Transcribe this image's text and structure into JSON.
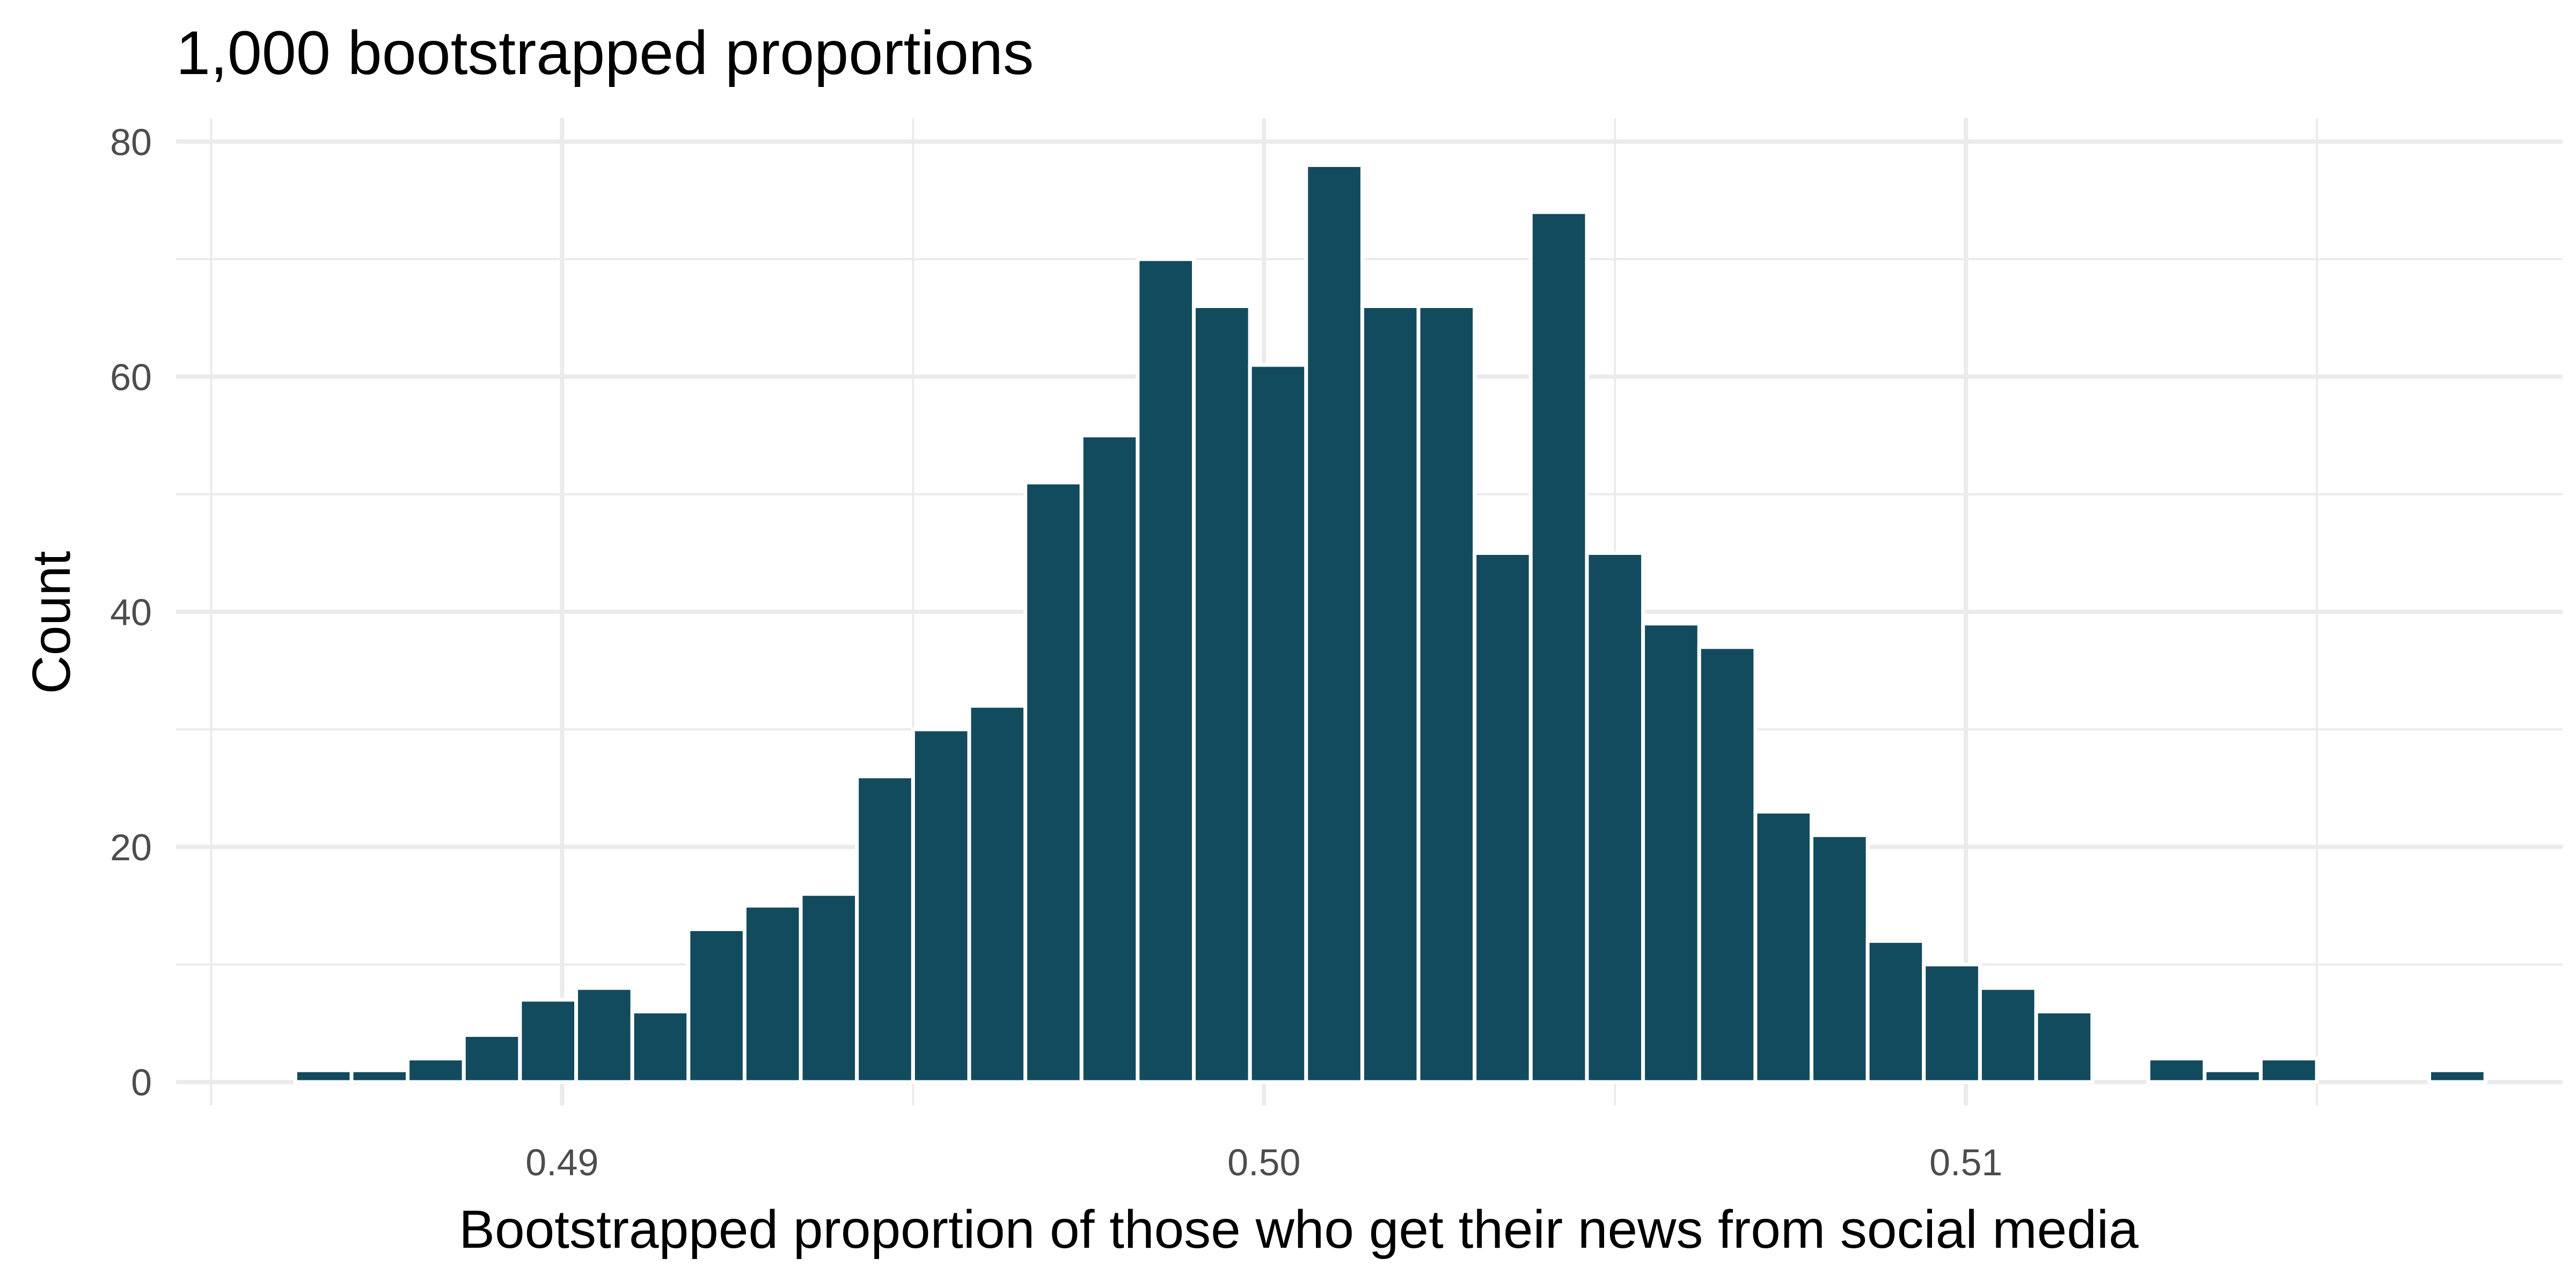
{
  "chart_data": {
    "type": "bar",
    "title": "1,000 bootstrapped proportions",
    "xlabel": "Bootstrapped proportion of those who get their news from social media",
    "ylabel": "Count",
    "bar_color": "#124b5e",
    "grid": true,
    "xlim": [
      0.4845,
      0.5185
    ],
    "ylim": [
      -2,
      82
    ],
    "x_ticks": [
      {
        "value": 0.49,
        "label": "0.49"
      },
      {
        "value": 0.5,
        "label": "0.50"
      },
      {
        "value": 0.51,
        "label": "0.51"
      }
    ],
    "x_minor_ticks": [
      0.485,
      0.495,
      0.505,
      0.515
    ],
    "y_ticks": [
      {
        "value": 0,
        "label": "0"
      },
      {
        "value": 20,
        "label": "20"
      },
      {
        "value": 40,
        "label": "40"
      },
      {
        "value": 60,
        "label": "60"
      },
      {
        "value": 80,
        "label": "80"
      }
    ],
    "y_minor_ticks": [
      10,
      30,
      50,
      70
    ],
    "bin_width": 0.0008,
    "bin_centers": [
      0.4866,
      0.4874,
      0.4882,
      0.489,
      0.4898,
      0.4906,
      0.4914,
      0.4922,
      0.493,
      0.4938,
      0.4946,
      0.4954,
      0.4962,
      0.497,
      0.4978,
      0.4986,
      0.4994,
      0.5002,
      0.501,
      0.5018,
      0.5026,
      0.5034,
      0.5042,
      0.505,
      0.5058,
      0.5066,
      0.5074,
      0.5082,
      0.509,
      0.5098,
      0.5106,
      0.5114,
      0.5122,
      0.513,
      0.5138,
      0.5146,
      0.5154,
      0.5162,
      0.517
    ],
    "values": [
      1,
      1,
      2,
      4,
      7,
      8,
      6,
      13,
      15,
      16,
      26,
      30,
      32,
      51,
      55,
      70,
      66,
      61,
      78,
      66,
      66,
      45,
      74,
      45,
      39,
      37,
      23,
      21,
      12,
      10,
      8,
      6,
      0,
      2,
      1,
      2,
      0,
      0,
      1
    ]
  }
}
